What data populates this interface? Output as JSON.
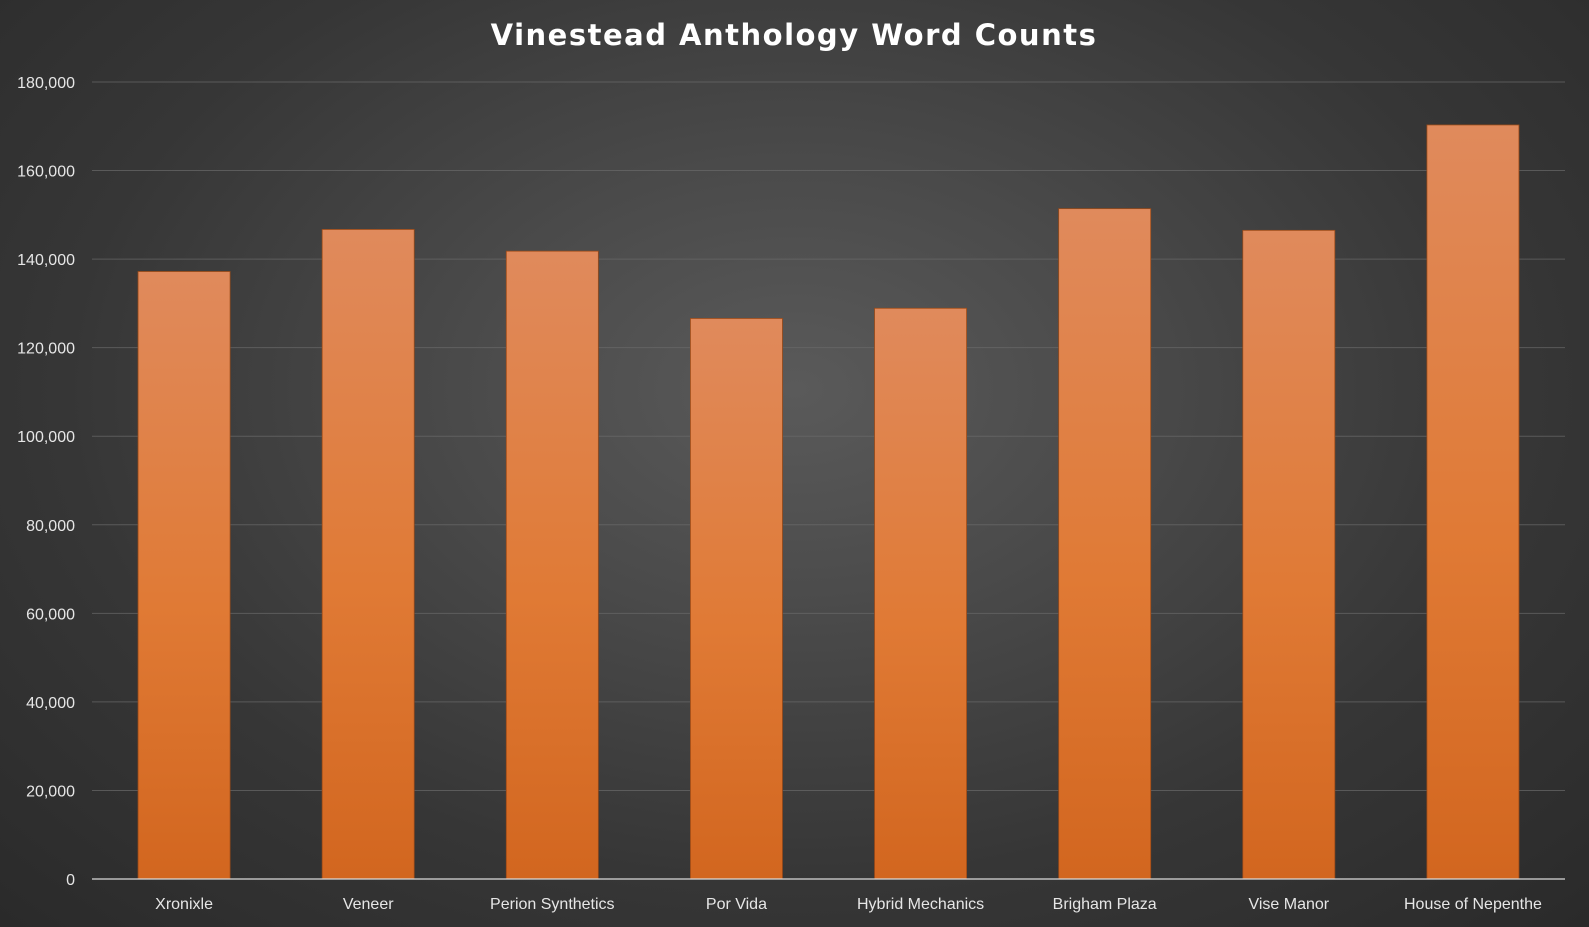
{
  "chart_data": {
    "type": "bar",
    "title": "Vinestead Anthology Word Counts",
    "xlabel": "",
    "ylabel": "",
    "categories": [
      "Xronixle",
      "Veneer",
      "Perion Synthetics",
      "Por Vida",
      "Hybrid Mechanics",
      "Brigham Plaza",
      "Vise Manor",
      "House of Nepenthe"
    ],
    "values": [
      137200,
      146700,
      141800,
      126600,
      128900,
      151400,
      146500,
      170300
    ],
    "ylim": [
      0,
      180000
    ],
    "yticks": [
      0,
      20000,
      40000,
      60000,
      80000,
      100000,
      120000,
      140000,
      160000,
      180000
    ],
    "ytick_labels": [
      "0",
      "20,000",
      "40,000",
      "60,000",
      "80,000",
      "100,000",
      "120,000",
      "140,000",
      "160,000",
      "180,000"
    ],
    "grid": true,
    "legend": "none",
    "bar_color_top": "#e08a5c",
    "bar_color_bottom": "#d2661f",
    "background": "#3a3a3a"
  }
}
